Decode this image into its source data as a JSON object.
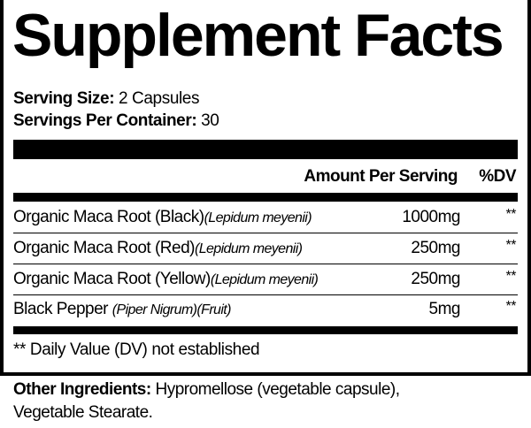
{
  "title": "Supplement Facts",
  "serving_size": {
    "label": "Serving Size:",
    "value": "2 Capsules"
  },
  "servings_per_container": {
    "label": "Servings Per Container:",
    "value": "30"
  },
  "header": {
    "amount": "Amount Per Serving",
    "dv": "%DV"
  },
  "rows": [
    {
      "name": "Organic Maca Root (Black)",
      "latin": "(Lepidum meyenii)",
      "amount": "1000mg",
      "dv": "**"
    },
    {
      "name": "Organic Maca Root (Red)",
      "latin": "(Lepidum meyenii)",
      "amount": "250mg",
      "dv": "**"
    },
    {
      "name": "Organic Maca Root (Yellow)",
      "latin": "(Lepidum meyenii)",
      "amount": "250mg",
      "dv": "**"
    },
    {
      "name": "Black Pepper ",
      "latin": "(Piper Nigrum)(Fruit)",
      "amount": "5mg",
      "dv": "**"
    }
  ],
  "footnote": "** Daily Value (DV) not established",
  "other_ingredients": {
    "label": "Other Ingredients:",
    "line1": " Hypromellose (vegetable capsule),",
    "line2": "Vegetable Stearate."
  }
}
